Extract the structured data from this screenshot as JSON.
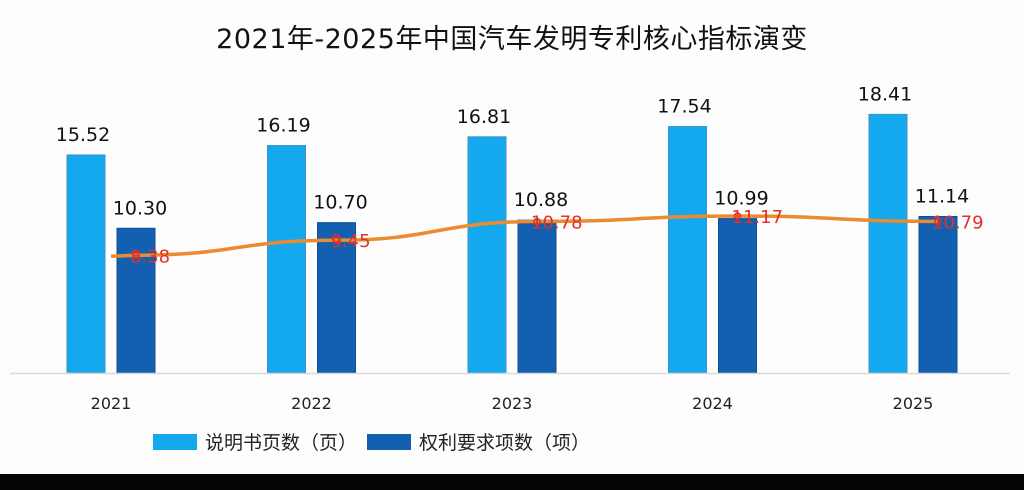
{
  "chart_data": {
    "type": "bar",
    "title": "2021年-2025年中国汽车发明专利核心指标演变",
    "xlabel": "",
    "ylabel": "",
    "categories": [
      "2021",
      "2022",
      "2023",
      "2024",
      "2025"
    ],
    "ylim": [
      0,
      20
    ],
    "grid": false,
    "legend_position": "bottom-left",
    "series": [
      {
        "name": "说明书页数（页）",
        "kind": "bar",
        "color": "#14a9ee",
        "values": [
          15.52,
          16.19,
          16.81,
          17.54,
          18.41
        ],
        "labels": [
          "15.52",
          "16.19",
          "16.81",
          "17.54",
          "18.41"
        ]
      },
      {
        "name": "权利要求项数（项）",
        "kind": "bar",
        "color": "#135fb0",
        "values": [
          10.3,
          10.7,
          10.88,
          10.99,
          11.14
        ],
        "labels": [
          "10.30",
          "10.70",
          "10.88",
          "10.99",
          "11.14"
        ]
      },
      {
        "name": "",
        "kind": "line",
        "color": "#ec8a2e",
        "label_color": "#e0312a",
        "values": [
          8.38,
          9.45,
          10.78,
          11.17,
          10.79
        ],
        "labels": [
          "8.38",
          "9.45",
          "10.78",
          "11.17",
          "10.79"
        ]
      }
    ]
  }
}
